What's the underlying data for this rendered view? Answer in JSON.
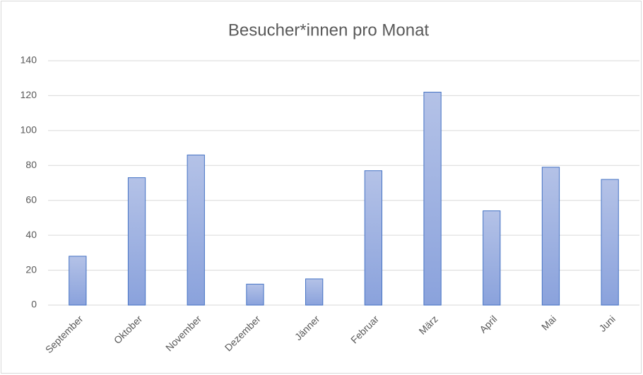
{
  "chart_data": {
    "type": "bar",
    "title": "Besucher*innen pro Monat",
    "categories": [
      "September",
      "Oktober",
      "November",
      "Dezember",
      "Jänner",
      "Februar",
      "März",
      "April",
      "Mai",
      "Juni"
    ],
    "values": [
      28,
      73,
      86,
      12,
      15,
      77,
      122,
      54,
      79,
      72
    ],
    "color": "#4472c4",
    "ylim": [
      0,
      140
    ],
    "yticks": [
      0,
      20,
      40,
      60,
      80,
      100,
      120,
      140
    ],
    "grid": true
  }
}
